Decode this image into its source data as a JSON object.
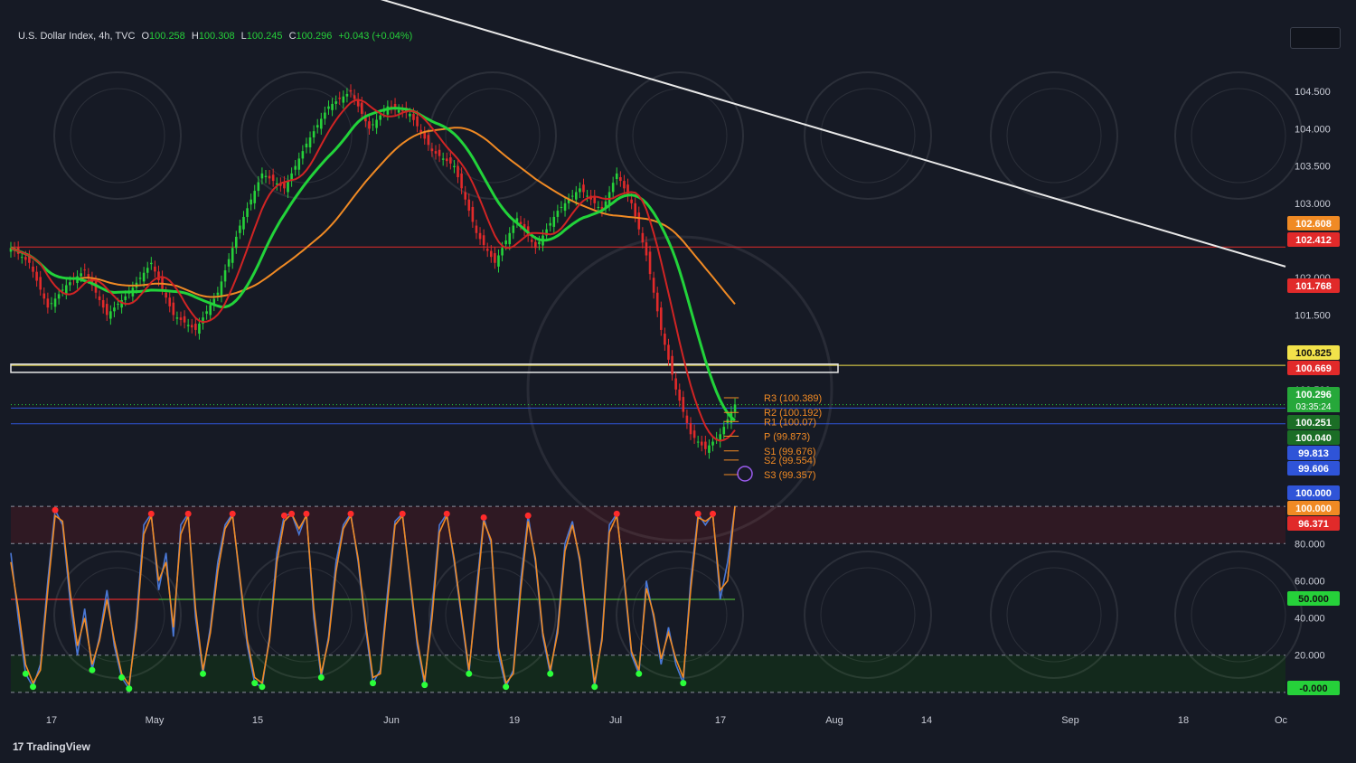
{
  "header": {
    "symbol": "U.S. Dollar Index, 4h, TVC",
    "open_label": "O",
    "open": "100.258",
    "high_label": "H",
    "high": "100.308",
    "low_label": "L",
    "low": "100.245",
    "close_label": "C",
    "close": "100.296",
    "change": "+0.043 (+0.04%)"
  },
  "brand": {
    "logo": "17",
    "name": "TradingView"
  },
  "colors": {
    "background": "#161a25",
    "up": "#26d13a",
    "down": "#e12a2a",
    "pivot": "#f08a24",
    "trendline": "#e8e8e8",
    "support_zone": "#f2e24a",
    "blue_level": "#2f54d8"
  },
  "chart_data": [
    {
      "type": "line",
      "title": "U.S. Dollar Index, 4h, TVC",
      "x_ticks": [
        "17",
        "May",
        "15",
        "Jun",
        "19",
        "Jul",
        "17",
        "Aug",
        "14",
        "Sep",
        "18",
        "Oc"
      ],
      "y_ticks": [
        "104.500",
        "104.000",
        "103.500",
        "103.000",
        "102.000",
        "101.500",
        "101.000",
        "100.500"
      ],
      "ylim": [
        99.2,
        105.0
      ],
      "series": [
        {
          "points": [
            [
              0,
              102.4
            ],
            [
              5,
              102.2
            ],
            [
              10,
              101.6
            ],
            [
              15,
              101.9
            ],
            [
              20,
              102.1
            ],
            [
              26,
              101.5
            ],
            [
              32,
              101.8
            ],
            [
              38,
              102.2
            ],
            [
              44,
              101.5
            ],
            [
              50,
              101.3
            ],
            [
              56,
              101.8
            ],
            [
              62,
              102.7
            ],
            [
              68,
              103.4
            ],
            [
              74,
              103.2
            ],
            [
              80,
              103.8
            ],
            [
              86,
              104.3
            ],
            [
              92,
              104.5
            ],
            [
              97,
              104.0
            ],
            [
              102,
              104.3
            ],
            [
              108,
              104.2
            ],
            [
              114,
              103.7
            ],
            [
              120,
              103.5
            ],
            [
              126,
              102.6
            ],
            [
              131,
              102.2
            ],
            [
              137,
              102.8
            ],
            [
              142,
              102.4
            ],
            [
              148,
              102.9
            ],
            [
              154,
              103.2
            ],
            [
              160,
              102.9
            ],
            [
              164,
              103.4
            ],
            [
              168,
              103.0
            ],
            [
              172,
              102.3
            ],
            [
              176,
              101.3
            ],
            [
              180,
              100.5
            ],
            [
              184,
              99.9
            ],
            [
              188,
              99.7
            ],
            [
              192,
              99.9
            ],
            [
              196,
              100.3
            ]
          ]
        }
      ],
      "moving_average_ends": [
        {
          "name": "",
          "value": 102.608
        },
        {
          "name": "",
          "value": 101.768
        },
        {
          "name": "",
          "value": 100.669
        }
      ],
      "horizontal_levels": [
        102.412,
        100.825,
        100.251,
        100.04
      ],
      "trendline": {
        "from": [
          -20,
          107.5
        ],
        "to": [
          345,
          102.15
        ]
      },
      "support_zone": [
        100.73,
        100.84
      ],
      "pivots": [
        {
          "label": "R3 (100.389)",
          "value": 100.389
        },
        {
          "label": "R2 (100.192)",
          "value": 100.192
        },
        {
          "label": "R1 (100.07)",
          "value": 100.07
        },
        {
          "label": "P (99.873)",
          "value": 99.873
        },
        {
          "label": "S1 (99.676)",
          "value": 99.676
        },
        {
          "label": "S2 (99.554)",
          "value": 99.554
        },
        {
          "label": "S3 (99.357)",
          "value": 99.357
        }
      ],
      "price_tags": [
        {
          "text": "102.608",
          "value": 102.608,
          "bg": "#f08a24",
          "fg": "#ffffff"
        },
        {
          "text": "102.412",
          "value": 102.412,
          "bg": "#e12a2a",
          "fg": "#ffffff"
        },
        {
          "text": "101.768",
          "value": 101.768,
          "bg": "#e12a2a",
          "fg": "#ffffff"
        },
        {
          "text": "100.825",
          "value": 100.825,
          "bg": "#f2e24a",
          "fg": "#111111"
        },
        {
          "text": "100.669",
          "value": 100.669,
          "bg": "#e12a2a",
          "fg": "#ffffff"
        },
        {
          "text": "100.296",
          "value": 100.296,
          "bg": "#26a83a",
          "fg": "#ffffff",
          "sub": "03:35:24"
        },
        {
          "text": "100.251",
          "value": 100.251,
          "bg": "#1b6e26",
          "fg": "#ffffff"
        },
        {
          "text": "100.040",
          "value": 100.04,
          "bg": "#1b6e26",
          "fg": "#ffffff"
        },
        {
          "text": "99.813",
          "value": 99.813,
          "bg": "#2f54d8",
          "fg": "#ffffff"
        },
        {
          "text": "99.606",
          "value": 99.606,
          "bg": "#2f54d8",
          "fg": "#ffffff"
        }
      ]
    },
    {
      "type": "line",
      "title": "",
      "y_ticks": [
        "80.000",
        "60.000",
        "40.000",
        "20.000"
      ],
      "ylim": [
        -2,
        102
      ],
      "overbought": 80,
      "oversold": 20,
      "midline": 50,
      "series": [
        {
          "name": "",
          "color": "#4a78d6",
          "values": [
            75,
            40,
            10,
            3,
            15,
            60,
            98,
            90,
            50,
            20,
            45,
            12,
            30,
            55,
            25,
            8,
            2,
            40,
            90,
            96,
            55,
            75,
            30,
            90,
            96,
            40,
            10,
            35,
            70,
            90,
            96,
            60,
            25,
            5,
            3,
            30,
            75,
            95,
            96,
            85,
            96,
            40,
            8,
            30,
            70,
            90,
            96,
            70,
            35,
            5,
            12,
            55,
            92,
            96,
            60,
            25,
            4,
            45,
            90,
            96,
            70,
            40,
            10,
            55,
            94,
            80,
            20,
            3,
            12,
            60,
            95,
            70,
            30,
            10,
            35,
            80,
            92,
            70,
            35,
            3,
            30,
            90,
            96,
            60,
            20,
            10,
            60,
            40,
            15,
            35,
            15,
            5,
            60,
            96,
            90,
            96,
            50,
            70,
            100
          ]
        },
        {
          "name": "",
          "color": "#f08a24",
          "values": [
            70,
            45,
            15,
            5,
            12,
            55,
            95,
            92,
            55,
            25,
            40,
            15,
            28,
            50,
            28,
            10,
            4,
            35,
            85,
            95,
            60,
            70,
            35,
            85,
            95,
            45,
            12,
            32,
            65,
            88,
            95,
            62,
            28,
            8,
            5,
            28,
            70,
            92,
            96,
            88,
            95,
            45,
            10,
            28,
            65,
            88,
            95,
            72,
            38,
            8,
            10,
            50,
            90,
            95,
            62,
            28,
            6,
            40,
            86,
            95,
            72,
            42,
            12,
            50,
            92,
            82,
            24,
            5,
            10,
            55,
            92,
            72,
            32,
            12,
            32,
            76,
            90,
            72,
            38,
            5,
            28,
            86,
            95,
            62,
            22,
            12,
            56,
            42,
            18,
            32,
            18,
            8,
            55,
            94,
            92,
            95,
            55,
            60,
            100
          ]
        }
      ],
      "value_tags": [
        {
          "text": "100.000",
          "value": 100,
          "bg": "#2f54d8",
          "fg": "#ffffff"
        },
        {
          "text": "100.000",
          "value": 100,
          "bg": "#f08a24",
          "fg": "#ffffff"
        },
        {
          "text": "96.371",
          "value": 96.371,
          "bg": "#e12a2a",
          "fg": "#ffffff"
        },
        {
          "text": "50.000",
          "value": 50,
          "bg": "#26d13a",
          "fg": "#111111"
        },
        {
          "text": "-0.000",
          "value": 0,
          "bg": "#26d13a",
          "fg": "#111111"
        }
      ]
    }
  ]
}
